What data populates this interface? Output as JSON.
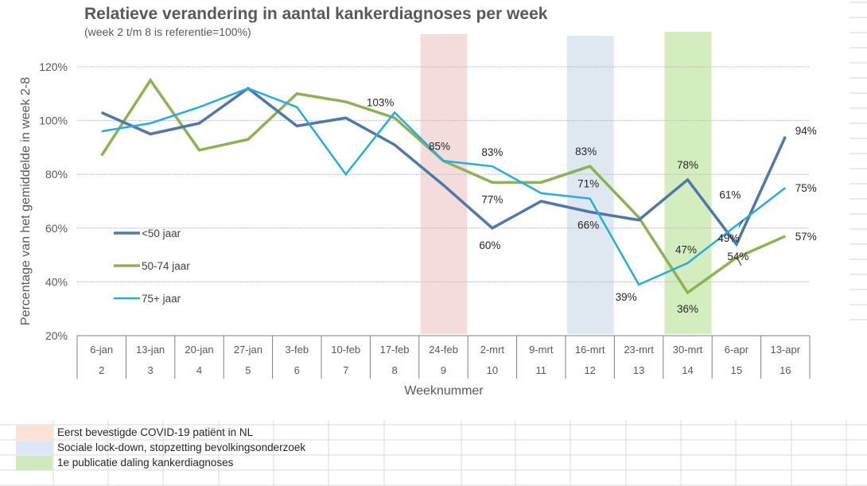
{
  "chart_data": {
    "type": "line",
    "title": "Relatieve verandering in aantal kankerdiagnoses per week",
    "subtitle": "(week 2 t/m 8 is referentie=100%)",
    "xlabel": "Weeknummer",
    "ylabel": "Percentage van het gemiddelde in week 2-8",
    "ylim": [
      20,
      120
    ],
    "yticks": [
      "120%",
      "100%",
      "80%",
      "60%",
      "40%",
      "20%"
    ],
    "ytick_values": [
      120,
      100,
      80,
      60,
      40,
      20
    ],
    "grid": true,
    "legend_position": "left-middle",
    "categories_dates": [
      "6-jan",
      "13-jan",
      "20-jan",
      "27-jan",
      "3-feb",
      "10-feb",
      "17-feb",
      "24-feb",
      "2-mrt",
      "9-mrt",
      "16-mrt",
      "23-mrt",
      "30-mrt",
      "6-apr",
      "13-apr"
    ],
    "categories_weeks": [
      "2",
      "3",
      "4",
      "5",
      "6",
      "7",
      "8",
      "9",
      "10",
      "11",
      "12",
      "13",
      "14",
      "15",
      "16"
    ],
    "series": [
      {
        "name": "<50 jaar",
        "color": "#4F77AA",
        "values": [
          103,
          95,
          99,
          112,
          98,
          101,
          91,
          76,
          60,
          70,
          66,
          63,
          78,
          54,
          94
        ]
      },
      {
        "name": "50-74 jaar",
        "color": "#8DB255",
        "values": [
          87,
          115,
          89,
          93,
          110,
          107,
          101,
          85,
          77,
          77,
          83,
          64,
          36,
          49,
          57
        ]
      },
      {
        "name": "75+ jaar",
        "color": "#27ACDC",
        "values": [
          96,
          99,
          105,
          112,
          105,
          80,
          103,
          85,
          83,
          73,
          71,
          39,
          47,
          61,
          75
        ]
      }
    ],
    "data_labels": [
      {
        "series": 2,
        "index": 6,
        "text": "103%"
      },
      {
        "series": 1,
        "index": 7,
        "text": "85%"
      },
      {
        "series": 2,
        "index": 8,
        "text": "83%"
      },
      {
        "series": 1,
        "index": 8,
        "text": "77%"
      },
      {
        "series": 0,
        "index": 8,
        "text": "60%"
      },
      {
        "series": 1,
        "index": 10,
        "text": "83%"
      },
      {
        "series": 2,
        "index": 10,
        "text": "71%"
      },
      {
        "series": 0,
        "index": 10,
        "text": "66%"
      },
      {
        "series": 2,
        "index": 11,
        "text": "39%"
      },
      {
        "series": 0,
        "index": 12,
        "text": "78%"
      },
      {
        "series": 2,
        "index": 12,
        "text": "47%"
      },
      {
        "series": 1,
        "index": 12,
        "text": "36%"
      },
      {
        "series": 2,
        "index": 13,
        "text": "61%"
      },
      {
        "series": 0,
        "index": 13,
        "text": "54%"
      },
      {
        "series": 1,
        "index": 13,
        "text": "49%"
      },
      {
        "series": 0,
        "index": 14,
        "text": "94%"
      },
      {
        "series": 2,
        "index": 14,
        "text": "75%"
      },
      {
        "series": 1,
        "index": 14,
        "text": "57%"
      }
    ],
    "highlight_bands": [
      {
        "week": "9",
        "color": "#F4DCDC",
        "label": "Eerst bevestigde COVID-19 patiënt in NL"
      },
      {
        "week": "12",
        "color": "#DFE7F1",
        "label": "Sociale lock-down, stopzetting bevolkingsonderzoek"
      },
      {
        "week": "14",
        "color": "#D4EDBE",
        "label": "1e publicatie daling kankerdiagnoses"
      }
    ]
  },
  "notes": [
    {
      "color": "#FBE1D6",
      "label": "Eerst bevestigde COVID-19 patiënt in NL"
    },
    {
      "color": "#DDE6F2",
      "label": "Sociale lock-down, stopzetting bevolkingsonderzoek"
    },
    {
      "color": "#CFE8BD",
      "label": "1e publicatie daling kankerdiagnoses"
    }
  ]
}
